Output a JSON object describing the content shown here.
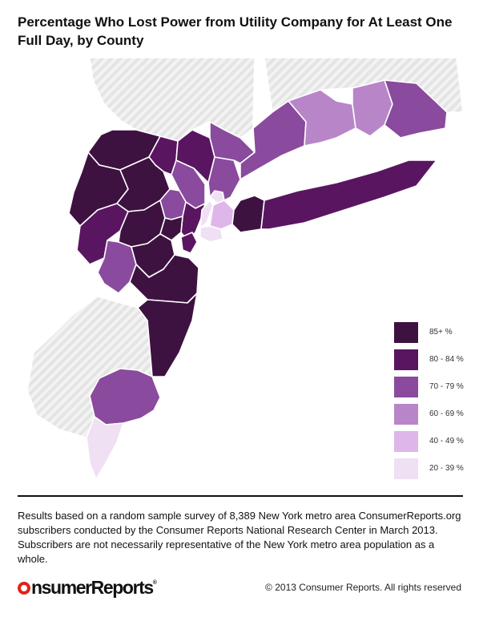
{
  "header": {
    "title": "Percentage Who Lost Power from Utility Company for At Least One Full Day, by County"
  },
  "colors": {
    "background": "#ffffff",
    "no_data": "#e4e4e4",
    "no_data_hatch": "#f3f3f3",
    "water": "#ffffff"
  },
  "legend": {
    "items": [
      {
        "label": "85+ %",
        "color": "#3d1240"
      },
      {
        "label": "80 - 84 %",
        "color": "#5a1561"
      },
      {
        "label": "70 - 79 %",
        "color": "#8a4a9d"
      },
      {
        "label": "60 - 69 %",
        "color": "#b886c8"
      },
      {
        "label": "40 - 49 %",
        "color": "#dfb6ea"
      },
      {
        "label": "20 - 39 %",
        "color": "#f0e0f3"
      }
    ]
  },
  "map": {
    "regions": [
      {
        "key": "ny_upstate",
        "band": "none"
      },
      {
        "key": "ct_north",
        "band": "none"
      },
      {
        "key": "nj_south",
        "band": "none"
      },
      {
        "key": "sussex",
        "band": "85+ %"
      },
      {
        "key": "warren",
        "band": "85+ %"
      },
      {
        "key": "passaic",
        "band": "80 - 84 %"
      },
      {
        "key": "bergen",
        "band": "70 - 79 %"
      },
      {
        "key": "rockland",
        "band": "80 - 84 %"
      },
      {
        "key": "westchester",
        "band": "70 - 79 %"
      },
      {
        "key": "putnam",
        "band": "70 - 79 %"
      },
      {
        "key": "fairfield",
        "band": "70 - 79 %"
      },
      {
        "key": "new_haven",
        "band": "60 - 69 %"
      },
      {
        "key": "middlesex_ct",
        "band": "60 - 69 %"
      },
      {
        "key": "new_london",
        "band": "70 - 79 %"
      },
      {
        "key": "morris",
        "band": "85+ %"
      },
      {
        "key": "hunterdon",
        "band": "80 - 84 %"
      },
      {
        "key": "somerset",
        "band": "85+ %"
      },
      {
        "key": "essex",
        "band": "70 - 79 %"
      },
      {
        "key": "hudson",
        "band": "80 - 84 %"
      },
      {
        "key": "union",
        "band": "85+ %"
      },
      {
        "key": "mercer",
        "band": "70 - 79 %"
      },
      {
        "key": "middlesex_nj",
        "band": "85+ %"
      },
      {
        "key": "monmouth",
        "band": "85+ %"
      },
      {
        "key": "ocean",
        "band": "85+ %"
      },
      {
        "key": "staten_island",
        "band": "80 - 84 %"
      },
      {
        "key": "bronx",
        "band": "20 - 39 %"
      },
      {
        "key": "manhattan",
        "band": "20 - 39 %"
      },
      {
        "key": "queens",
        "band": "40 - 49 %"
      },
      {
        "key": "brooklyn",
        "band": "20 - 39 %"
      },
      {
        "key": "nassau",
        "band": "85+ %"
      },
      {
        "key": "suffolk",
        "band": "80 - 84 %"
      },
      {
        "key": "atlantic",
        "band": "70 - 79 %"
      },
      {
        "key": "cape_may",
        "band": "20 - 39 %"
      }
    ]
  },
  "footer": {
    "note": "Results based on a random sample survey of 8,389 New York metro area ConsumerReports.org subscribers conducted by the Consumer Reports National Research Center in March 2013. Subscribers are not necessarily representative of the New York metro area population as a whole.",
    "logo_lead": "C",
    "logo_rest": "nsumerReports",
    "logo_mark": "®",
    "copyright": "© 2013 Consumer Reports. All rights reserved"
  }
}
